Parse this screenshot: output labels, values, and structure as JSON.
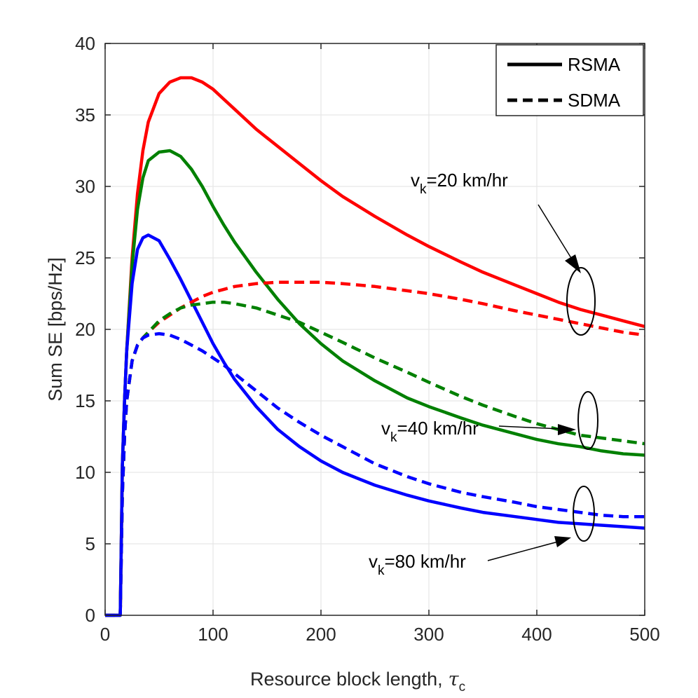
{
  "chart_data": {
    "type": "line",
    "title": "",
    "xlabel": "Resource block length,",
    "xlabel_symbol": "τ",
    "xlabel_subscript": "c",
    "ylabel": "Sum SE [bps/Hz]",
    "xlim": [
      0,
      500
    ],
    "ylim": [
      0,
      40
    ],
    "xticks": [
      0,
      100,
      200,
      300,
      400,
      500
    ],
    "yticks": [
      0,
      5,
      10,
      15,
      20,
      25,
      30,
      35,
      40
    ],
    "grid": true,
    "legend": {
      "position": "top-right",
      "entries": [
        {
          "label": "RSMA",
          "style": "solid",
          "color": "#000000"
        },
        {
          "label": "SDMA",
          "style": "dashed",
          "color": "#000000"
        }
      ]
    },
    "x": [
      0,
      13,
      14,
      16,
      18,
      20,
      25,
      30,
      35,
      40,
      50,
      60,
      70,
      80,
      90,
      100,
      110,
      120,
      140,
      160,
      180,
      200,
      220,
      250,
      280,
      300,
      330,
      350,
      380,
      400,
      420,
      440,
      460,
      480,
      500
    ],
    "series": [
      {
        "name": "RSMA, v_k=20 km/hr",
        "scheme": "RSMA",
        "style": "solid",
        "color": "#ff0000",
        "values": [
          0,
          0,
          0,
          10.5,
          15,
          18.5,
          25,
          29.5,
          32.5,
          34.5,
          36.5,
          37.3,
          37.6,
          37.6,
          37.3,
          36.8,
          36.1,
          35.4,
          34.0,
          32.8,
          31.6,
          30.4,
          29.3,
          27.9,
          26.6,
          25.8,
          24.7,
          24.0,
          23.1,
          22.5,
          21.9,
          21.4,
          21.0,
          20.6,
          20.2
        ]
      },
      {
        "name": "RSMA, v_k=40 km/hr",
        "scheme": "RSMA",
        "style": "solid",
        "color": "#008000",
        "values": [
          0,
          0,
          0,
          10.5,
          15,
          18.5,
          24.5,
          28.4,
          30.6,
          31.8,
          32.4,
          32.5,
          32.1,
          31.2,
          30.0,
          28.6,
          27.3,
          26.1,
          24.0,
          22.1,
          20.4,
          19.0,
          17.8,
          16.4,
          15.2,
          14.6,
          13.8,
          13.3,
          12.7,
          12.3,
          12.0,
          11.8,
          11.5,
          11.3,
          11.2
        ]
      },
      {
        "name": "RSMA, v_k=80 km/hr",
        "scheme": "RSMA",
        "style": "solid",
        "color": "#0000ff",
        "values": [
          0,
          0,
          0,
          10.5,
          15,
          18.5,
          23.2,
          25.6,
          26.4,
          26.6,
          26.2,
          24.9,
          23.5,
          22.0,
          20.5,
          19.0,
          17.7,
          16.5,
          14.6,
          13.0,
          11.8,
          10.8,
          10.0,
          9.1,
          8.4,
          8.0,
          7.5,
          7.2,
          6.9,
          6.7,
          6.5,
          6.4,
          6.3,
          6.2,
          6.1
        ]
      },
      {
        "name": "SDMA, v_k=20 km/hr",
        "scheme": "SDMA",
        "style": "dashed",
        "color": "#ff0000",
        "values": [
          0,
          0,
          0,
          8.5,
          12.5,
          15.0,
          17.8,
          18.9,
          19.4,
          19.8,
          20.5,
          21.0,
          21.5,
          21.9,
          22.3,
          22.6,
          22.8,
          23.0,
          23.2,
          23.3,
          23.3,
          23.3,
          23.2,
          23.0,
          22.7,
          22.5,
          22.1,
          21.8,
          21.3,
          21.0,
          20.7,
          20.4,
          20.1,
          19.8,
          19.6
        ]
      },
      {
        "name": "SDMA, v_k=40 km/hr",
        "scheme": "SDMA",
        "style": "dashed",
        "color": "#008000",
        "values": [
          0,
          0,
          0,
          8.5,
          12.5,
          15.0,
          17.8,
          18.9,
          19.4,
          19.8,
          20.6,
          21.1,
          21.5,
          21.7,
          21.8,
          21.9,
          21.9,
          21.8,
          21.5,
          21.0,
          20.5,
          19.8,
          19.1,
          18.0,
          17.0,
          16.3,
          15.3,
          14.7,
          13.9,
          13.4,
          13.0,
          12.6,
          12.4,
          12.2,
          12.0
        ]
      },
      {
        "name": "SDMA, v_k=80 km/hr",
        "scheme": "SDMA",
        "style": "dashed",
        "color": "#0000ff",
        "values": [
          0,
          0,
          0,
          8.5,
          12.5,
          15.0,
          17.8,
          18.9,
          19.4,
          19.6,
          19.7,
          19.6,
          19.3,
          18.9,
          18.5,
          18.0,
          17.5,
          16.9,
          15.7,
          14.5,
          13.5,
          12.6,
          11.8,
          10.6,
          9.7,
          9.2,
          8.6,
          8.3,
          7.9,
          7.6,
          7.4,
          7.2,
          7.0,
          6.9,
          6.9
        ]
      }
    ],
    "annotations": [
      {
        "prefix": "v",
        "subscript": "k",
        "text": "=20 km/hr"
      },
      {
        "prefix": "v",
        "subscript": "k",
        "text": "=40 km/hr"
      },
      {
        "prefix": "v",
        "subscript": "k",
        "text": "=80 km/hr"
      }
    ]
  }
}
